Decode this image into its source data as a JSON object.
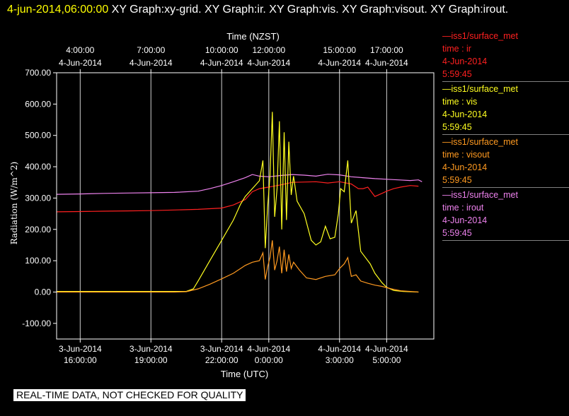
{
  "header": {
    "timestamp": "4-jun-2014,06:00:00",
    "graphs": " XY Graph:xy-grid.  XY Graph:ir.  XY Graph:vis.  XY Graph:visout.  XY Graph:irout."
  },
  "legend": [
    {
      "line1": "—iss1/surface_met",
      "line2": "time : ir",
      "line3": "4-Jun-2014",
      "line4": "5:59:45",
      "color": "#ff2020"
    },
    {
      "line1": "—iss1/surface_met",
      "line2": "time : vis",
      "line3": "4-Jun-2014",
      "line4": "5:59:45",
      "color": "#ffff20"
    },
    {
      "line1": "—iss1/surface_met",
      "line2": "time : visout",
      "line3": "4-Jun-2014",
      "line4": "5:59:45",
      "color": "#ff9a20"
    },
    {
      "line1": "—iss1/surface_met",
      "line2": "time : irout",
      "line3": "4-Jun-2014",
      "line4": "5:59:45",
      "color": "#ee82ee"
    }
  ],
  "footer": "REAL-TIME DATA, NOT CHECKED FOR QUALITY",
  "chart_data": {
    "type": "line",
    "xlabel": "Time (UTC)",
    "x2label": "Time (NZST)",
    "ylabel": "Radiation  (W/m^2)",
    "ylim": [
      -150,
      700
    ],
    "xlim": [
      "3-Jun-2014 15:00:00",
      "4-Jun-2014 07:00:00"
    ],
    "yticks": [
      {
        "v": 700,
        "l": "700.00"
      },
      {
        "v": 600,
        "l": "600.00"
      },
      {
        "v": 500,
        "l": "500.00"
      },
      {
        "v": 400,
        "l": "400.00"
      },
      {
        "v": 300,
        "l": "300.00"
      },
      {
        "v": 200,
        "l": "200.00"
      },
      {
        "v": 100,
        "l": "100.00"
      },
      {
        "v": 0,
        "l": "0.00"
      },
      {
        "v": -100,
        "l": "-100.00"
      }
    ],
    "xticks_bottom": [
      {
        "h": 16,
        "l1": "3-Jun-2014",
        "l2": "16:00:00"
      },
      {
        "h": 19,
        "l1": "3-Jun-2014",
        "l2": "19:00:00"
      },
      {
        "h": 22,
        "l1": "3-Jun-2014",
        "l2": "22:00:00"
      },
      {
        "h": 24,
        "l1": "4-Jun-2014",
        "l2": "0:00:00"
      },
      {
        "h": 27,
        "l1": "4-Jun-2014",
        "l2": "3:00:00"
      },
      {
        "h": 29,
        "l1": "4-Jun-2014",
        "l2": "5:00:00"
      }
    ],
    "xticks_top": [
      {
        "h": 16,
        "l1": "4:00:00",
        "l2": "4-Jun-2014"
      },
      {
        "h": 19,
        "l1": "7:00:00",
        "l2": "4-Jun-2014"
      },
      {
        "h": 22,
        "l1": "10:00:00",
        "l2": "4-Jun-2014"
      },
      {
        "h": 24,
        "l1": "12:00:00",
        "l2": "4-Jun-2014"
      },
      {
        "h": 27,
        "l1": "15:00:00",
        "l2": "4-Jun-2014"
      },
      {
        "h": 29,
        "l1": "17:00:00",
        "l2": "4-Jun-2014"
      }
    ],
    "series": [
      {
        "key": "irout",
        "color": "#ee82ee",
        "points": [
          [
            15,
            312
          ],
          [
            16,
            313
          ],
          [
            17,
            315
          ],
          [
            18,
            316
          ],
          [
            19,
            317
          ],
          [
            20,
            318
          ],
          [
            21,
            322
          ],
          [
            21.5,
            330
          ],
          [
            22,
            340
          ],
          [
            22.5,
            352
          ],
          [
            23,
            365
          ],
          [
            23.3,
            375
          ],
          [
            23.6,
            370
          ],
          [
            24,
            368
          ],
          [
            24.5,
            372
          ],
          [
            25,
            375
          ],
          [
            25.5,
            373
          ],
          [
            26,
            370
          ],
          [
            26.5,
            376
          ],
          [
            27,
            374
          ],
          [
            27.5,
            368
          ],
          [
            28,
            365
          ],
          [
            28.5,
            362
          ],
          [
            29,
            360
          ],
          [
            29.5,
            358
          ],
          [
            30,
            356
          ],
          [
            30.35,
            358
          ],
          [
            30.5,
            352
          ]
        ]
      },
      {
        "key": "ir",
        "color": "#ff2020",
        "points": [
          [
            15,
            256
          ],
          [
            16,
            257
          ],
          [
            17,
            258
          ],
          [
            18,
            259
          ],
          [
            19,
            260
          ],
          [
            20,
            262
          ],
          [
            21,
            264
          ],
          [
            22,
            268
          ],
          [
            22.5,
            278
          ],
          [
            23,
            295
          ],
          [
            23.3,
            320
          ],
          [
            23.6,
            330
          ],
          [
            24,
            335
          ],
          [
            24.5,
            342
          ],
          [
            25,
            350
          ],
          [
            26,
            352
          ],
          [
            26.5,
            348
          ],
          [
            27,
            352
          ],
          [
            27.5,
            345
          ],
          [
            27.8,
            330
          ],
          [
            28,
            330
          ],
          [
            28.2,
            335
          ],
          [
            28.5,
            305
          ],
          [
            28.8,
            315
          ],
          [
            29,
            322
          ],
          [
            29.3,
            330
          ],
          [
            29.6,
            335
          ],
          [
            30,
            340
          ],
          [
            30.35,
            338
          ]
        ]
      },
      {
        "key": "vis",
        "color": "#ffff20",
        "points": [
          [
            15,
            2
          ],
          [
            16,
            2
          ],
          [
            17,
            2
          ],
          [
            18,
            2
          ],
          [
            19,
            2
          ],
          [
            20,
            2
          ],
          [
            20.5,
            2
          ],
          [
            20.8,
            10
          ],
          [
            21,
            35
          ],
          [
            21.5,
            100
          ],
          [
            22,
            165
          ],
          [
            22.5,
            230
          ],
          [
            22.8,
            280
          ],
          [
            23,
            305
          ],
          [
            23.3,
            330
          ],
          [
            23.6,
            355
          ],
          [
            23.75,
            420
          ],
          [
            23.85,
            140
          ],
          [
            23.95,
            270
          ],
          [
            24.05,
            370
          ],
          [
            24.15,
            575
          ],
          [
            24.25,
            240
          ],
          [
            24.35,
            330
          ],
          [
            24.45,
            545
          ],
          [
            24.55,
            200
          ],
          [
            24.65,
            510
          ],
          [
            24.75,
            230
          ],
          [
            24.85,
            480
          ],
          [
            24.95,
            310
          ],
          [
            25.05,
            370
          ],
          [
            25.2,
            290
          ],
          [
            25.5,
            250
          ],
          [
            25.8,
            165
          ],
          [
            26,
            150
          ],
          [
            26.2,
            160
          ],
          [
            26.4,
            210
          ],
          [
            26.6,
            170
          ],
          [
            26.8,
            175
          ],
          [
            26.95,
            250
          ],
          [
            27.05,
            330
          ],
          [
            27.2,
            320
          ],
          [
            27.35,
            420
          ],
          [
            27.5,
            220
          ],
          [
            27.7,
            260
          ],
          [
            27.9,
            130
          ],
          [
            28.1,
            110
          ],
          [
            28.3,
            90
          ],
          [
            28.5,
            60
          ],
          [
            28.8,
            30
          ],
          [
            29,
            15
          ],
          [
            29.3,
            5
          ],
          [
            29.7,
            2
          ],
          [
            30.35,
            0
          ]
        ]
      },
      {
        "key": "visout",
        "color": "#ff9a20",
        "points": [
          [
            15,
            0
          ],
          [
            16,
            0
          ],
          [
            17,
            0
          ],
          [
            18,
            0
          ],
          [
            19,
            0
          ],
          [
            20,
            0
          ],
          [
            20.5,
            1
          ],
          [
            21,
            10
          ],
          [
            21.5,
            25
          ],
          [
            22,
            42
          ],
          [
            22.5,
            60
          ],
          [
            22.8,
            75
          ],
          [
            23,
            85
          ],
          [
            23.3,
            95
          ],
          [
            23.6,
            100
          ],
          [
            23.75,
            125
          ],
          [
            23.85,
            40
          ],
          [
            23.95,
            80
          ],
          [
            24.05,
            110
          ],
          [
            24.15,
            165
          ],
          [
            24.25,
            70
          ],
          [
            24.35,
            100
          ],
          [
            24.45,
            145
          ],
          [
            24.55,
            60
          ],
          [
            24.65,
            135
          ],
          [
            24.75,
            65
          ],
          [
            24.85,
            120
          ],
          [
            24.95,
            75
          ],
          [
            25.05,
            95
          ],
          [
            25.3,
            70
          ],
          [
            25.6,
            45
          ],
          [
            26,
            40
          ],
          [
            26.4,
            50
          ],
          [
            26.8,
            55
          ],
          [
            27,
            75
          ],
          [
            27.2,
            90
          ],
          [
            27.35,
            110
          ],
          [
            27.5,
            50
          ],
          [
            27.7,
            55
          ],
          [
            27.9,
            35
          ],
          [
            28.2,
            28
          ],
          [
            28.5,
            22
          ],
          [
            28.8,
            18
          ],
          [
            29.2,
            10
          ],
          [
            29.6,
            4
          ],
          [
            30,
            2
          ],
          [
            30.35,
            0
          ]
        ]
      }
    ]
  }
}
